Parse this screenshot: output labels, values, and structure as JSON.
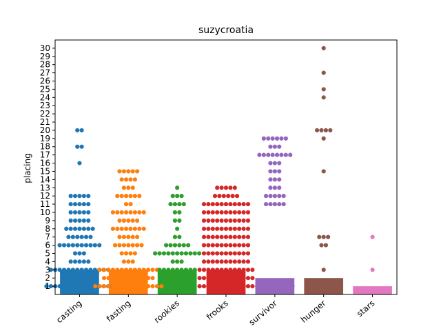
{
  "chart_data": {
    "type": "bar",
    "title": "suzycroatia",
    "xlabel": "",
    "ylabel": "placing",
    "ylim": [
      0,
      31
    ],
    "yticks": [
      1,
      2,
      3,
      4,
      5,
      6,
      7,
      8,
      9,
      10,
      11,
      12,
      13,
      14,
      15,
      16,
      17,
      18,
      19,
      20,
      21,
      22,
      23,
      24,
      25,
      26,
      27,
      28,
      29,
      30
    ],
    "grid": false,
    "categories": [
      "casting",
      "fasting",
      "rookies",
      "frooks",
      "survivor",
      "hunger",
      "stars"
    ],
    "colors": [
      "#1f77b4",
      "#ff7f0e",
      "#2ca02c",
      "#d62728",
      "#9467bd",
      "#8c564b",
      "#e377c2"
    ],
    "bar_values": [
      3,
      3,
      3,
      3,
      2,
      2,
      1
    ],
    "swarm": [
      {
        "name": "casting",
        "points": [
          [
            1,
            16
          ],
          [
            2,
            8
          ],
          [
            3,
            14
          ],
          [
            4,
            5
          ],
          [
            5,
            3
          ],
          [
            6,
            10
          ],
          [
            7,
            6
          ],
          [
            8,
            7
          ],
          [
            9,
            5
          ],
          [
            10,
            5
          ],
          [
            11,
            5
          ],
          [
            12,
            5
          ],
          [
            16,
            1
          ],
          [
            18,
            2
          ],
          [
            20,
            2
          ]
        ]
      },
      {
        "name": "fasting",
        "points": [
          [
            1,
            16
          ],
          [
            2,
            12
          ],
          [
            3,
            14
          ],
          [
            4,
            3
          ],
          [
            5,
            4
          ],
          [
            6,
            7
          ],
          [
            7,
            5
          ],
          [
            8,
            8
          ],
          [
            9,
            5
          ],
          [
            10,
            8
          ],
          [
            11,
            2
          ],
          [
            12,
            6
          ],
          [
            13,
            3
          ],
          [
            14,
            4
          ],
          [
            15,
            5
          ]
        ]
      },
      {
        "name": "rookies",
        "points": [
          [
            1,
            5
          ],
          [
            2,
            6
          ],
          [
            3,
            9
          ],
          [
            4,
            3
          ],
          [
            5,
            11
          ],
          [
            6,
            6
          ],
          [
            7,
            2
          ],
          [
            8,
            1
          ],
          [
            9,
            2
          ],
          [
            10,
            2
          ],
          [
            11,
            4
          ],
          [
            12,
            3
          ],
          [
            13,
            1
          ]
        ]
      },
      {
        "name": "frooks",
        "points": [
          [
            1,
            13
          ],
          [
            2,
            13
          ],
          [
            3,
            13
          ],
          [
            4,
            11
          ],
          [
            5,
            11
          ],
          [
            6,
            11
          ],
          [
            7,
            11
          ],
          [
            8,
            11
          ],
          [
            9,
            11
          ],
          [
            10,
            11
          ],
          [
            11,
            11
          ],
          [
            12,
            6
          ],
          [
            13,
            5
          ]
        ]
      },
      {
        "name": "survivor",
        "points": [
          [
            1,
            9
          ],
          [
            11,
            5
          ],
          [
            12,
            5
          ],
          [
            13,
            3
          ],
          [
            14,
            3
          ],
          [
            15,
            3
          ],
          [
            16,
            3
          ],
          [
            17,
            8
          ],
          [
            18,
            3
          ],
          [
            19,
            6
          ]
        ]
      },
      {
        "name": "hunger",
        "points": [
          [
            3,
            1
          ],
          [
            6,
            2
          ],
          [
            7,
            3
          ],
          [
            15,
            1
          ],
          [
            19,
            1
          ],
          [
            20,
            4
          ],
          [
            24,
            1
          ],
          [
            25,
            1
          ],
          [
            27,
            1
          ],
          [
            30,
            1
          ]
        ]
      },
      {
        "name": "stars",
        "points": [
          [
            3,
            1
          ],
          [
            7,
            1
          ]
        ]
      }
    ]
  }
}
